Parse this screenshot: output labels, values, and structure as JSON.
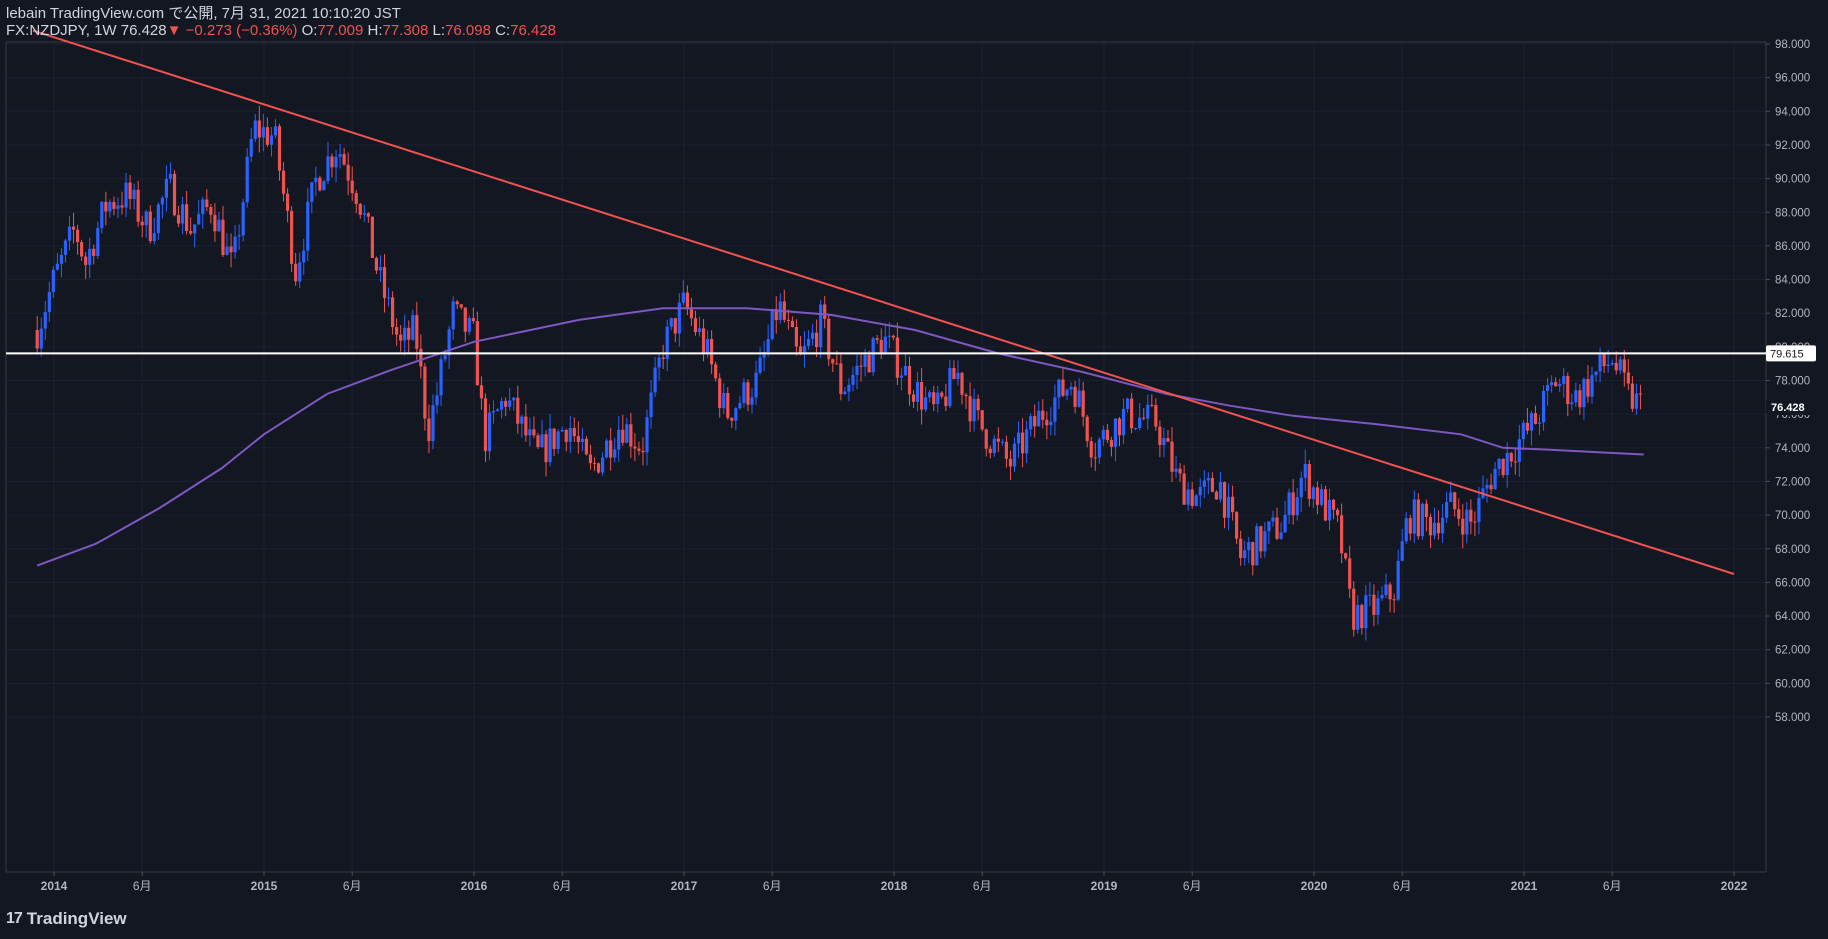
{
  "header": {
    "line1": "lebain TradingView.com で公開, 7月 31, 2021 10:10:20 JST",
    "symbol": "FX:NZDJPY, 1W 76.428",
    "arrow": "▼",
    "change": "−0.273 (−0.36%)",
    "o_label": "O:",
    "o_value": "77.009",
    "h_label": "H:",
    "h_value": "77.308",
    "l_label": "L:",
    "l_value": "76.098",
    "c_label": "C:",
    "c_value": "76.428"
  },
  "footer": {
    "brand": "TradingView",
    "logo_glyph": "17"
  },
  "colors": {
    "background": "#131722",
    "up": "#2962ff",
    "down": "#ef5350",
    "ma": "#7e57c2",
    "trendline": "#f05350",
    "horizontal": "#ffffff",
    "text": "#d1d4dc"
  },
  "chart_data": {
    "type": "candlestick",
    "ylim": [
      56,
      98
    ],
    "xlim": [
      2013.9,
      2022.3
    ],
    "yticks": [
      "98.000",
      "96.000",
      "94.000",
      "92.000",
      "90.000",
      "88.000",
      "86.000",
      "84.000",
      "82.000",
      "80.000",
      "78.000",
      "76.000",
      "74.000",
      "72.000",
      "70.000",
      "68.000",
      "66.000",
      "64.000",
      "62.000",
      "60.000",
      "58.000"
    ],
    "ytick_values": [
      98,
      96,
      94,
      92,
      90,
      88,
      86,
      84,
      82,
      80,
      78,
      76,
      74,
      72,
      70,
      68,
      66,
      64,
      62,
      60,
      58
    ],
    "xticks": [
      {
        "label": "2014",
        "t": 2014.0
      },
      {
        "label": "6月",
        "t": 2014.42
      },
      {
        "label": "2015",
        "t": 2015.0
      },
      {
        "label": "6月",
        "t": 2015.42
      },
      {
        "label": "2016",
        "t": 2016.0
      },
      {
        "label": "6月",
        "t": 2016.42
      },
      {
        "label": "2017",
        "t": 2017.0
      },
      {
        "label": "6月",
        "t": 2017.42
      },
      {
        "label": "2018",
        "t": 2018.0
      },
      {
        "label": "6月",
        "t": 2018.42
      },
      {
        "label": "2019",
        "t": 2019.0
      },
      {
        "label": "6月",
        "t": 2019.42
      },
      {
        "label": "2020",
        "t": 2020.0
      },
      {
        "label": "6月",
        "t": 2020.42
      },
      {
        "label": "2021",
        "t": 2021.0
      },
      {
        "label": "6月",
        "t": 2021.42
      },
      {
        "label": "2022",
        "t": 2022.0
      }
    ],
    "horizontal_line": {
      "value": 79.615,
      "label": "79.615"
    },
    "last_price": {
      "value": 76.428,
      "label": "76.428"
    },
    "trendline": [
      {
        "t": 2013.9,
        "v": 98.8
      },
      {
        "t": 2022.0,
        "v": 66.5
      }
    ],
    "ma_path": [
      {
        "t": 2013.92,
        "v": 67.0
      },
      {
        "t": 2014.2,
        "v": 68.3
      },
      {
        "t": 2014.5,
        "v": 70.4
      },
      {
        "t": 2014.8,
        "v": 72.8
      },
      {
        "t": 2015.0,
        "v": 74.8
      },
      {
        "t": 2015.3,
        "v": 77.2
      },
      {
        "t": 2015.6,
        "v": 78.6
      },
      {
        "t": 2016.0,
        "v": 80.3
      },
      {
        "t": 2016.5,
        "v": 81.6
      },
      {
        "t": 2016.9,
        "v": 82.3
      },
      {
        "t": 2017.3,
        "v": 82.3
      },
      {
        "t": 2017.7,
        "v": 81.9
      },
      {
        "t": 2018.1,
        "v": 81.0
      },
      {
        "t": 2018.5,
        "v": 79.6
      },
      {
        "t": 2018.9,
        "v": 78.5
      },
      {
        "t": 2019.3,
        "v": 77.2
      },
      {
        "t": 2019.6,
        "v": 76.5
      },
      {
        "t": 2019.9,
        "v": 75.9
      },
      {
        "t": 2020.3,
        "v": 75.4
      },
      {
        "t": 2020.7,
        "v": 74.8
      },
      {
        "t": 2020.9,
        "v": 74.0
      },
      {
        "t": 2021.1,
        "v": 73.9
      },
      {
        "t": 2021.4,
        "v": 73.7
      },
      {
        "t": 2021.57,
        "v": 73.6
      }
    ],
    "close_path": [
      {
        "t": 2013.92,
        "v": 81.0
      },
      {
        "t": 2014.0,
        "v": 84.0
      },
      {
        "t": 2014.1,
        "v": 87.0
      },
      {
        "t": 2014.15,
        "v": 85.0
      },
      {
        "t": 2014.25,
        "v": 88.5
      },
      {
        "t": 2014.35,
        "v": 89.0
      },
      {
        "t": 2014.45,
        "v": 87.0
      },
      {
        "t": 2014.55,
        "v": 89.5
      },
      {
        "t": 2014.65,
        "v": 87.0
      },
      {
        "t": 2014.75,
        "v": 88.5
      },
      {
        "t": 2014.85,
        "v": 84.5
      },
      {
        "t": 2014.95,
        "v": 93.0
      },
      {
        "t": 2015.05,
        "v": 92.5
      },
      {
        "t": 2015.15,
        "v": 84.5
      },
      {
        "t": 2015.25,
        "v": 90.0
      },
      {
        "t": 2015.35,
        "v": 92.0
      },
      {
        "t": 2015.45,
        "v": 89.0
      },
      {
        "t": 2015.55,
        "v": 84.0
      },
      {
        "t": 2015.65,
        "v": 80.0
      },
      {
        "t": 2015.72,
        "v": 81.0
      },
      {
        "t": 2015.78,
        "v": 75.0
      },
      {
        "t": 2015.82,
        "v": 77.0
      },
      {
        "t": 2015.9,
        "v": 82.0
      },
      {
        "t": 2016.0,
        "v": 80.5
      },
      {
        "t": 2016.05,
        "v": 74.5
      },
      {
        "t": 2016.15,
        "v": 77.0
      },
      {
        "t": 2016.3,
        "v": 73.5
      },
      {
        "t": 2016.45,
        "v": 75.5
      },
      {
        "t": 2016.55,
        "v": 72.5
      },
      {
        "t": 2016.7,
        "v": 75.5
      },
      {
        "t": 2016.8,
        "v": 74.0
      },
      {
        "t": 2016.9,
        "v": 80.0
      },
      {
        "t": 2017.0,
        "v": 82.5
      },
      {
        "t": 2017.1,
        "v": 80.0
      },
      {
        "t": 2017.2,
        "v": 76.0
      },
      {
        "t": 2017.35,
        "v": 78.0
      },
      {
        "t": 2017.45,
        "v": 82.5
      },
      {
        "t": 2017.55,
        "v": 79.0
      },
      {
        "t": 2017.65,
        "v": 81.5
      },
      {
        "t": 2017.75,
        "v": 77.5
      },
      {
        "t": 2017.85,
        "v": 79.0
      },
      {
        "t": 2017.95,
        "v": 80.5
      },
      {
        "t": 2018.1,
        "v": 77.5
      },
      {
        "t": 2018.2,
        "v": 76.0
      },
      {
        "t": 2018.3,
        "v": 78.5
      },
      {
        "t": 2018.4,
        "v": 75.5
      },
      {
        "t": 2018.55,
        "v": 73.0
      },
      {
        "t": 2018.7,
        "v": 76.0
      },
      {
        "t": 2018.85,
        "v": 78.0
      },
      {
        "t": 2018.95,
        "v": 74.0
      },
      {
        "t": 2019.1,
        "v": 76.0
      },
      {
        "t": 2019.25,
        "v": 75.5
      },
      {
        "t": 2019.35,
        "v": 72.0
      },
      {
        "t": 2019.45,
        "v": 71.0
      },
      {
        "t": 2019.55,
        "v": 72.0
      },
      {
        "t": 2019.65,
        "v": 67.5
      },
      {
        "t": 2019.75,
        "v": 68.5
      },
      {
        "t": 2019.85,
        "v": 69.5
      },
      {
        "t": 2019.95,
        "v": 72.5
      },
      {
        "t": 2020.05,
        "v": 70.5
      },
      {
        "t": 2020.12,
        "v": 69.0
      },
      {
        "t": 2020.18,
        "v": 64.0
      },
      {
        "t": 2020.3,
        "v": 64.5
      },
      {
        "t": 2020.38,
        "v": 65.5
      },
      {
        "t": 2020.45,
        "v": 70.0
      },
      {
        "t": 2020.55,
        "v": 69.5
      },
      {
        "t": 2020.65,
        "v": 70.5
      },
      {
        "t": 2020.75,
        "v": 69.5
      },
      {
        "t": 2020.85,
        "v": 72.5
      },
      {
        "t": 2020.95,
        "v": 74.0
      },
      {
        "t": 2021.05,
        "v": 75.5
      },
      {
        "t": 2021.15,
        "v": 78.0
      },
      {
        "t": 2021.25,
        "v": 77.0
      },
      {
        "t": 2021.35,
        "v": 78.5
      },
      {
        "t": 2021.42,
        "v": 79.3
      },
      {
        "t": 2021.5,
        "v": 77.0
      },
      {
        "t": 2021.57,
        "v": 76.4
      }
    ]
  }
}
